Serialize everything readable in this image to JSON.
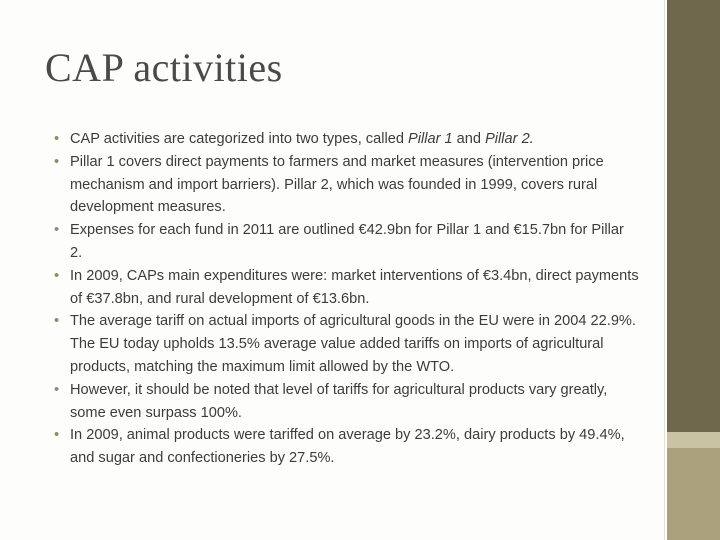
{
  "header": {
    "title": "CAP activities"
  },
  "bullets": [
    [
      "CAP activities are categorized into two types, called ",
      "Pillar 1",
      " and ",
      "Pillar 2."
    ],
    "Pillar 1 covers direct payments to farmers and market measures (intervention price mechanism and import barriers). Pillar 2, which was founded in 1999, covers rural development measures.",
    "Expenses for each fund in 2011 are outlined €42.9bn for Pillar 1 and €15.7bn for Pillar 2.",
    "In 2009, CAPs main expenditures were: market interventions of €3.4bn, direct payments of €37.8bn, and rural development of €13.6bn.",
    "The average tariff on actual imports of agricultural goods in the EU were in 2004 22.9%. The EU today upholds 13.5% average value added tariffs on imports of agricultural products, matching the maximum limit allowed by the WTO.",
    "However, it should be noted that level of tariffs for agricultural products vary greatly, some even surpass 100%.",
    "In 2009, animal products were tariffed on average by 23.2%, dairy products by 49.4%, and sugar and confectioneries by 27.5%."
  ]
}
